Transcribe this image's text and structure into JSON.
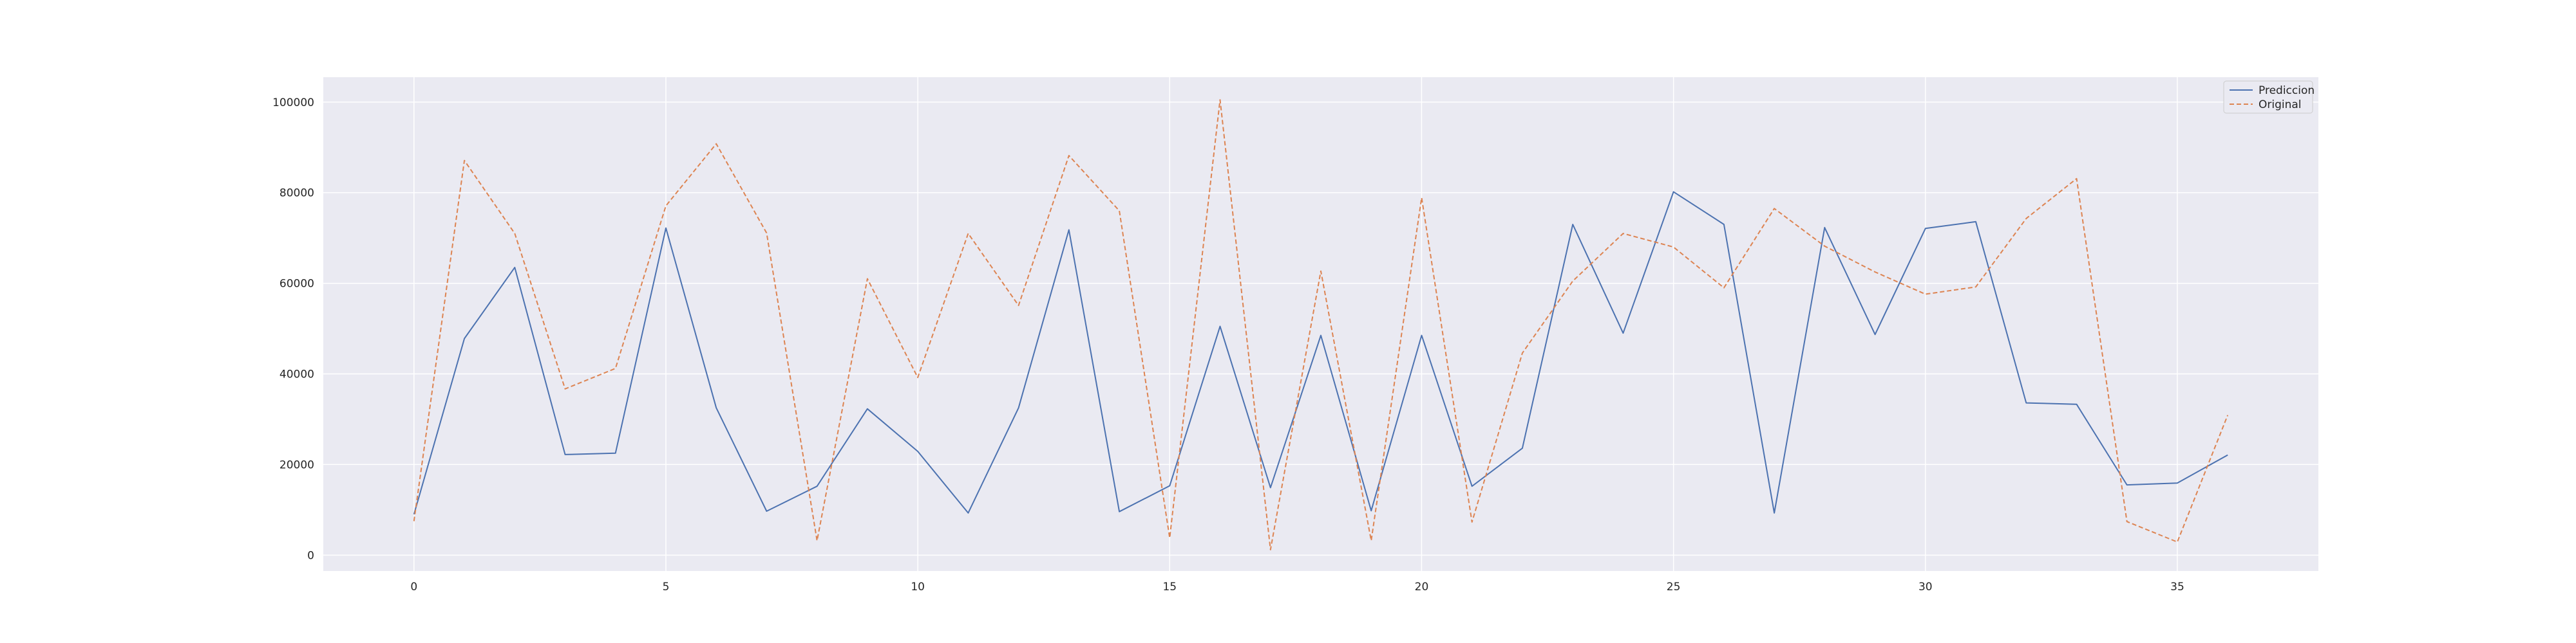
{
  "chart_data": {
    "type": "line",
    "title": "",
    "xlabel": "",
    "ylabel": "",
    "xlim": [
      -1.8,
      37.8
    ],
    "ylim": [
      -3500,
      105500
    ],
    "xticks": [
      0,
      5,
      10,
      15,
      20,
      25,
      30,
      35
    ],
    "yticks": [
      0,
      20000,
      40000,
      60000,
      80000,
      100000
    ],
    "grid": true,
    "legend_position": "top-right",
    "x": [
      0,
      1,
      2,
      3,
      4,
      5,
      6,
      7,
      8,
      9,
      10,
      11,
      12,
      13,
      14,
      15,
      16,
      17,
      18,
      19,
      20,
      21,
      22,
      23,
      24,
      25,
      26,
      27,
      28,
      29,
      30,
      31,
      32,
      33,
      34,
      35,
      36
    ],
    "series": [
      {
        "name": "Prediccion",
        "color": "#4c72b0",
        "style": "solid",
        "values": [
          9000,
          47800,
          63500,
          22200,
          22500,
          72200,
          32500,
          9700,
          15200,
          32300,
          22900,
          9300,
          32500,
          71800,
          9600,
          15300,
          50500,
          14900,
          48500,
          9800,
          48500,
          15200,
          23600,
          73000,
          49000,
          80200,
          73000,
          9300,
          72300,
          48700,
          72100,
          73600,
          33600,
          33300,
          15500,
          15900,
          22100
        ]
      },
      {
        "name": "Original",
        "color": "#dd8452",
        "style": "dashed",
        "values": [
          7500,
          87100,
          71000,
          36700,
          41200,
          77100,
          90800,
          71100,
          3200,
          61000,
          39200,
          71000,
          55100,
          88200,
          76000,
          3800,
          100500,
          1200,
          62700,
          3200,
          78900,
          7300,
          44600,
          60500,
          71000,
          68000,
          59000,
          76500,
          68200,
          62500,
          57600,
          59200,
          74300,
          83100,
          7400,
          2900,
          30900
        ]
      }
    ]
  }
}
